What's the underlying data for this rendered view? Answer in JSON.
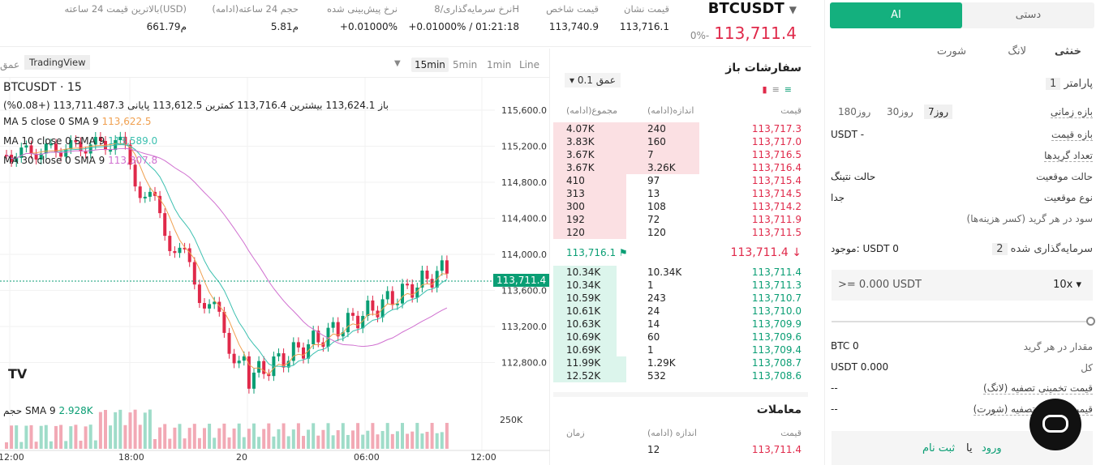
{
  "topbar": {
    "symbol": "BTCUSDT",
    "last_price": "113,711.4",
    "change_pct": "0%-",
    "stats": [
      {
        "label": "قیمت نشان",
        "value": "113,716.1"
      },
      {
        "label": "قیمت شاخص",
        "value": "113,740.9"
      },
      {
        "label": "نرخ سرمایه‌گذاری/8H",
        "value": "+0.01000% / 01:21:18"
      },
      {
        "label": "نرخ پیش‌بینی شده",
        "value": "+0.01000%"
      },
      {
        "label": "حجم 24 ساعته(ادامه)",
        "value": "5.81م"
      },
      {
        "label": "بالاترین قیمت 24 ساعته(USD)",
        "value": "661.79م"
      }
    ]
  },
  "chart": {
    "timeframes": [
      "Line",
      "1min",
      "5min",
      "15min"
    ],
    "active": "15min",
    "tv_badge": "TradingView",
    "depth_btn": "عمق",
    "legend": {
      "title": "BTCUSDT · 15",
      "ohlc": "باز 113,624.1  بیشترین 113,716.4  کمترین 113,612.5  پایانی 113,711.487.3 (+0.08%)",
      "ma5": "MA 5 close 0 SMA 9",
      "ma5_val": "113,622.5",
      "ma10": "MA 10 close 0 SMA 9",
      "ma10_val": "113,589.0",
      "ma30": "MA 30 close 0 SMA 9",
      "ma30_val": "113,307.8",
      "vol": "حجم  SMA 9",
      "vol_val": "2.928K"
    },
    "y_ticks": [
      "115,600.0",
      "115,200.0",
      "114,800.0",
      "114,400.0",
      "114,000.0",
      "113,600.0",
      "113,200.0",
      "112,800.0"
    ],
    "vol_tick": "250K",
    "x_ticks": [
      "12:00",
      "18:00",
      "20",
      "06:00",
      "12:00"
    ],
    "last_label": "113,711.4"
  },
  "orderbook": {
    "title": "سفارشات باز",
    "depth": "عمق 0.1",
    "headers": [
      "قیمت",
      "اندازه(ادامه)",
      "مجموع(ادامه)"
    ],
    "asks": [
      [
        "113,717.3",
        "240",
        "4.07K"
      ],
      [
        "113,717.0",
        "160",
        "3.83K"
      ],
      [
        "113,716.5",
        "7",
        "3.67K"
      ],
      [
        "113,716.4",
        "3.26K",
        "3.67K"
      ],
      [
        "113,715.4",
        "97",
        "410"
      ],
      [
        "113,714.5",
        "13",
        "313"
      ],
      [
        "113,714.2",
        "108",
        "300"
      ],
      [
        "113,711.9",
        "72",
        "192"
      ],
      [
        "113,711.5",
        "120",
        "120"
      ]
    ],
    "mid_price": "113,711.4",
    "mark": "113,716.1",
    "bids": [
      [
        "113,711.4",
        "10.34K",
        "10.34K"
      ],
      [
        "113,711.3",
        "1",
        "10.34K"
      ],
      [
        "113,710.7",
        "243",
        "10.59K"
      ],
      [
        "113,710.0",
        "24",
        "10.61K"
      ],
      [
        "113,709.9",
        "14",
        "10.63K"
      ],
      [
        "113,709.6",
        "60",
        "10.69K"
      ],
      [
        "113,709.4",
        "1",
        "10.69K"
      ],
      [
        "113,708.7",
        "1.29K",
        "11.99K"
      ],
      [
        "113,708.6",
        "532",
        "12.52K"
      ]
    ]
  },
  "trades": {
    "title": "معاملات",
    "headers": [
      "قیمت",
      "اندازه (ادامه)",
      "زمان"
    ],
    "row": [
      "113,711.4",
      "12",
      ""
    ]
  },
  "panel": {
    "tab_ai": "AI",
    "tab_manual": "دستی",
    "sides": [
      "خنثی",
      "لانگ",
      "شورت"
    ],
    "step1": "پارامتر",
    "step1_n": "1",
    "ranges": [
      "7روز",
      "30روز",
      "180روز"
    ],
    "time_range": "بازه زمانی",
    "price_range": "بازه قیمت",
    "price_val": "USDT -",
    "grid_count": "تعداد گریدها",
    "pos_mode": "حالت موقعیت",
    "pos_mode_val": "حالت نتینگ",
    "pos_type": "نوع موقعیت",
    "pos_type_val": "جدا",
    "profit": "سود در هر گرید (کسر هزینه‌ها)",
    "step2": "سرمایه‌گذاری شده",
    "step2_n": "2",
    "avail": "موجود: USDT 0",
    "amount_ph": ">= 0.000 USDT",
    "leverage": "10x",
    "qty_label": "مقدار در هر گرید",
    "qty_val": "BTC 0",
    "total_label": "کل",
    "total_val": "USDT 0.000",
    "liq_long": "قیمت تخمینی تصفیه (لانگ)",
    "liq_short": "قیمت تخمینی تصفیه (شورت)",
    "dash": "--",
    "login": "ورود",
    "or": "یا",
    "signup": "ثبت نام"
  }
}
